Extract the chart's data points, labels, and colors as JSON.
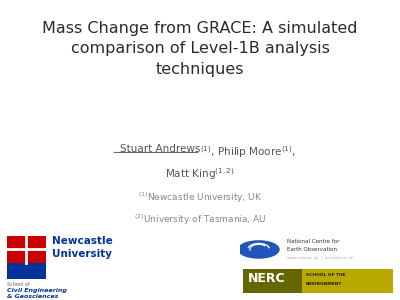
{
  "title_line1": "Mass Change from GRACE: A simulated",
  "title_line2": "comparison of Level-1B analysis",
  "title_line3": "techniques",
  "background_color": "#ffffff",
  "title_color": "#2b2b2b",
  "author_color": "#555555",
  "affil_color": "#888888",
  "title_fontsize": 11.5,
  "author_fontsize": 7.5,
  "affil_fontsize": 6.5,
  "newcastle_blue": "#003399",
  "newcastle_red": "#cc0000",
  "nceo_blue": "#2255bb",
  "nerc_olive": "#666600",
  "nerc_yellow": "#b8a800"
}
